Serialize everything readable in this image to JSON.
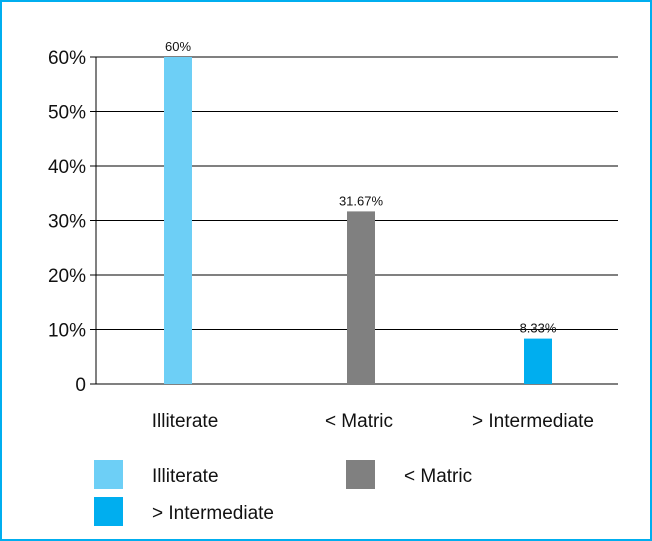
{
  "chart_data": {
    "type": "bar",
    "title": "",
    "xlabel": "",
    "ylabel": "",
    "categories": [
      "Illiterate",
      "< Matric",
      "> Intermediate"
    ],
    "series": [
      {
        "name": "Illiterate",
        "color": "#6dcff6",
        "values": [
          60,
          null,
          null
        ],
        "labels": [
          "60%",
          null,
          null
        ]
      },
      {
        "name": "< Matric",
        "color": "#808080",
        "values": [
          null,
          31.67,
          null
        ],
        "labels": [
          null,
          "31.67%",
          null
        ]
      },
      {
        "name": "> Intermediate",
        "color": "#00aeef",
        "values": [
          null,
          null,
          8.33
        ],
        "labels": [
          null,
          null,
          "8.33%"
        ]
      }
    ],
    "ylim": [
      0,
      60
    ],
    "yticks": [
      0,
      10,
      20,
      30,
      40,
      50,
      60
    ],
    "ytick_labels": [
      "0",
      "10%",
      "20%",
      "30%",
      "40%",
      "50%",
      "60%"
    ],
    "grid": true,
    "legend_position": "bottom",
    "frame_color": "#00aeef"
  }
}
